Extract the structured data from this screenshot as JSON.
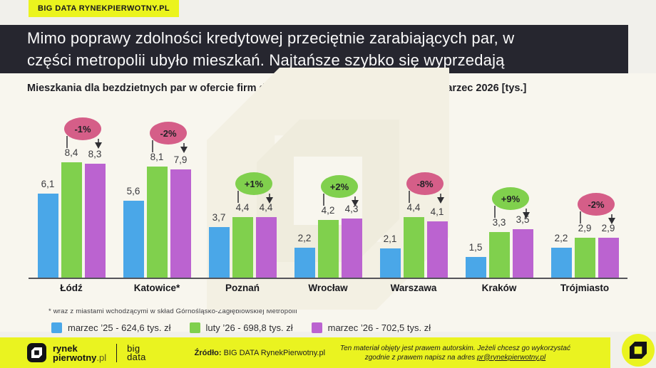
{
  "page": {
    "badge": "BIG DATA RYNEKPIERWOTNY.PL",
    "title_line1": "Mimo poprawy zdolności kredytowej przeciętnie zarabiających par, w",
    "title_line2": "części metropolii ubyło mieszkań. Najtańsze szybko się wyprzedają",
    "subtitle": "Mieszkania dla bezdzietnych par w ofercie firm deweloperskich, marzec 2025 – luty-marzec 2026 [tys.]",
    "footnote": "* wraz z miastami wchodzącymi w skład Górnośląsko-Zagłębiowskiej Metropolii"
  },
  "chart_data": {
    "type": "bar",
    "title": "Mieszkania dla bezdzietnych par w ofercie firm deweloperskich, marzec 2025 – luty-marzec 2026 [tys.]",
    "unit": "tys.",
    "ylim": [
      0,
      9
    ],
    "grid": false,
    "legend_position": "bottom",
    "value_decimal_separator": ",",
    "categories": [
      "Łódź",
      "Katowice*",
      "Poznań",
      "Wrocław",
      "Warszawa",
      "Kraków",
      "Trójmiasto"
    ],
    "series": [
      {
        "name": "marzec ’25 - 624,6 tys. zł",
        "color": "#4aa7e8",
        "values": [
          6.1,
          5.6,
          3.7,
          2.2,
          2.1,
          1.5,
          2.2
        ]
      },
      {
        "name": "luty ’26 - 698,8 tys. zł",
        "color": "#80d04d",
        "values": [
          8.4,
          8.1,
          4.4,
          4.2,
          4.4,
          3.3,
          2.9
        ]
      },
      {
        "name": "marzec ’26 - 702,5 tys. zł",
        "color": "#bb63d0",
        "values": [
          8.3,
          7.9,
          4.4,
          4.3,
          4.1,
          3.5,
          2.9
        ]
      }
    ],
    "annotations": [
      {
        "category": "Łódź",
        "label": "-1%",
        "tone": "negative"
      },
      {
        "category": "Katowice*",
        "label": "-2%",
        "tone": "negative"
      },
      {
        "category": "Poznań",
        "label": "+1%",
        "tone": "positive"
      },
      {
        "category": "Wrocław",
        "label": "+2%",
        "tone": "positive"
      },
      {
        "category": "Warszawa",
        "label": "-8%",
        "tone": "negative"
      },
      {
        "category": "Kraków",
        "label": "+9%",
        "tone": "positive"
      },
      {
        "category": "Trójmiasto",
        "label": "-2%",
        "tone": "negative"
      }
    ],
    "annotation_colors": {
      "positive": "#80d04d",
      "negative": "#d55e88"
    }
  },
  "footer": {
    "logo_line1": "rynek",
    "logo_line2_bold": "pierwotny",
    "logo_line2_suffix": ".pl",
    "bigdata_line1": "big",
    "bigdata_line2": "data",
    "source_label": "Źródło:",
    "source_text": " BIG DATA RynekPierwotny.pl",
    "copyright_line1": "Ten materiał objęty jest prawem autorskim. Jeżeli chcesz go wykorzystać",
    "copyright_line2": "zgodnie z prawem napisz na adres ",
    "copyright_email": "pr@rynekpierwotny.pl"
  },
  "colors": {
    "accent_yellow": "#eaf320",
    "titlebar_dark": "#26262f",
    "bar_blue": "#4aa7e8",
    "bar_green": "#80d04d",
    "bar_purple": "#bb63d0",
    "badge_negative": "#d55e88",
    "badge_positive": "#80d04d"
  }
}
